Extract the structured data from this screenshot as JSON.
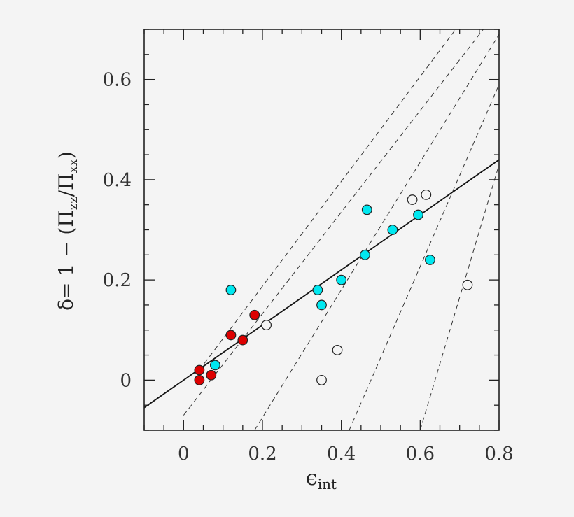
{
  "chart_data": {
    "type": "scatter",
    "xlim": [
      -0.1,
      0.8
    ],
    "ylim": [
      -0.1,
      0.7
    ],
    "xticks": [
      0,
      0.2,
      0.4,
      0.6,
      0.8
    ],
    "yticks": [
      0,
      0.2,
      0.4,
      0.6
    ],
    "xtick_labels": [
      "0",
      "0.2",
      "0.4",
      "0.6",
      "0.8"
    ],
    "ytick_labels": [
      "0",
      "0.2",
      "0.4",
      "0.6"
    ],
    "xlabel": {
      "symbol": "ϵ",
      "subscript": "int"
    },
    "ylabel": {
      "prefix": "δ=  1  −  (Π",
      "sub1": "zz",
      "mid": "/Π",
      "sub2": "xx",
      "suffix": ")"
    },
    "grid": false,
    "legend": "none",
    "colors": {
      "red": "#dd0000",
      "cyan": "#00e8f0",
      "open": "#f4f4f4",
      "stroke": "#222222"
    },
    "fit_line": {
      "style": "solid",
      "points": [
        [
          -0.1,
          -0.055
        ],
        [
          0.8,
          0.44
        ]
      ]
    },
    "dashed_lines": [
      {
        "style": "dashed",
        "points": [
          [
            0.0,
            -0.07
          ],
          [
            0.76,
            0.7
          ]
        ]
      },
      {
        "style": "dashed",
        "points": [
          [
            0.18,
            -0.1
          ],
          [
            0.8,
            0.69
          ]
        ]
      },
      {
        "style": "dashed",
        "points": [
          [
            0.42,
            -0.1
          ],
          [
            0.8,
            0.59
          ]
        ]
      },
      {
        "style": "dashed",
        "points": [
          [
            0.6,
            -0.1
          ],
          [
            0.8,
            0.43
          ]
        ]
      },
      {
        "style": "dashed",
        "points": [
          [
            0.04,
            0.02
          ],
          [
            0.69,
            0.7
          ]
        ]
      }
    ],
    "series": [
      {
        "marker": "filled-red",
        "points": [
          [
            0.04,
            0.02
          ],
          [
            0.04,
            0.0
          ],
          [
            0.07,
            0.01
          ],
          [
            0.12,
            0.09
          ],
          [
            0.15,
            0.08
          ],
          [
            0.18,
            0.13
          ]
        ]
      },
      {
        "marker": "filled-cyan",
        "points": [
          [
            0.08,
            0.03
          ],
          [
            0.12,
            0.18
          ],
          [
            0.34,
            0.18
          ],
          [
            0.35,
            0.15
          ],
          [
            0.4,
            0.2
          ],
          [
            0.46,
            0.25
          ],
          [
            0.465,
            0.34
          ],
          [
            0.53,
            0.3
          ],
          [
            0.595,
            0.33
          ],
          [
            0.625,
            0.24
          ]
        ]
      },
      {
        "marker": "open",
        "points": [
          [
            0.21,
            0.11
          ],
          [
            0.35,
            0.0
          ],
          [
            0.39,
            0.06
          ],
          [
            0.58,
            0.36
          ],
          [
            0.615,
            0.37
          ],
          [
            0.72,
            0.19
          ]
        ]
      }
    ]
  }
}
